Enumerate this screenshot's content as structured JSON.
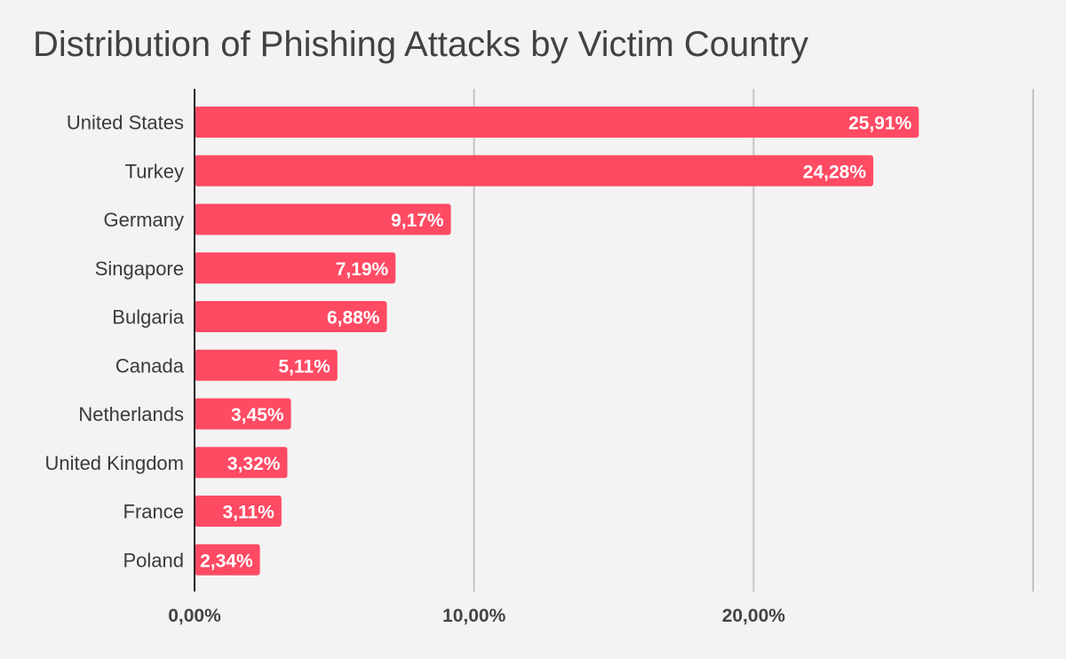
{
  "chart_data": {
    "type": "bar",
    "orientation": "horizontal",
    "title": "Distribution of Phishing Attacks by Victim Country",
    "xlabel": "",
    "ylabel": "",
    "xlim": [
      0,
      30
    ],
    "grid": true,
    "legend": "none",
    "bar_color": "#ff4a63",
    "categories": [
      "United States",
      "Turkey",
      "Germany",
      "Singapore",
      "Bulgaria",
      "Canada",
      "Netherlands",
      "United Kingdom",
      "France",
      "Poland"
    ],
    "values": [
      25.91,
      24.28,
      9.17,
      7.19,
      6.88,
      5.11,
      3.45,
      3.32,
      3.11,
      2.34
    ],
    "value_labels": [
      "25,91%",
      "24,28%",
      "9,17%",
      "7,19%",
      "6,88%",
      "5,11%",
      "3,45%",
      "3,32%",
      "3,11%",
      "2,34%"
    ],
    "ticks": [
      0,
      10,
      20,
      30
    ],
    "tick_labels": [
      "0,00%",
      "10,00%",
      "20,00%",
      ""
    ]
  }
}
